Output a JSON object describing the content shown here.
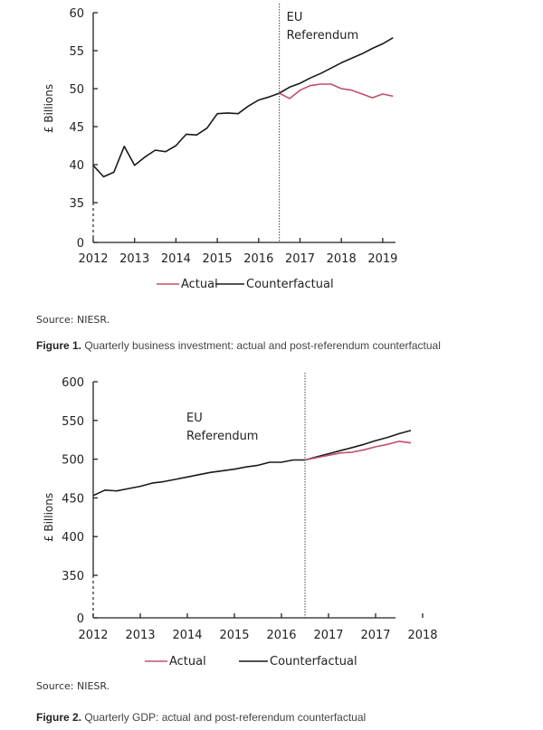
{
  "chart_data": [
    {
      "type": "line",
      "title": "",
      "xlabel": "",
      "ylabel": "£ Billions",
      "x_tick_labels": [
        "2012",
        "2013",
        "2014",
        "2015",
        "2016",
        "2017",
        "2018",
        "2019"
      ],
      "y_tick_labels": [
        "0",
        "35",
        "40",
        "45",
        "50",
        "55",
        "60"
      ],
      "y_tick_values": [
        0,
        35,
        40,
        45,
        50,
        55,
        60
      ],
      "ylim": [
        0,
        60
      ],
      "y_axis_break": [
        0,
        35
      ],
      "xlim": [
        2012,
        2019.25
      ],
      "grid": false,
      "legend_placement": "bottom-center",
      "annotation": {
        "line1": "EU",
        "line2": "Referendum",
        "x": 2016.5
      },
      "series": [
        {
          "name": "Actual",
          "color": "#c0506a",
          "x": [
            2016.5,
            2016.75,
            2017.0,
            2017.25,
            2017.5,
            2017.75,
            2018.0,
            2018.25,
            2018.5,
            2018.75,
            2019.0,
            2019.25
          ],
          "values": [
            49.4,
            48.7,
            49.8,
            50.4,
            50.6,
            50.6,
            50.0,
            49.8,
            49.3,
            48.8,
            49.3,
            49.0
          ]
        },
        {
          "name": "Counterfactual",
          "color": "#1a1a1a",
          "x": [
            2012.0,
            2012.25,
            2012.5,
            2012.75,
            2013.0,
            2013.25,
            2013.5,
            2013.75,
            2014.0,
            2014.25,
            2014.5,
            2014.75,
            2015.0,
            2015.25,
            2015.5,
            2015.75,
            2016.0,
            2016.25,
            2016.5,
            2016.75,
            2017.0,
            2017.25,
            2017.5,
            2017.75,
            2018.0,
            2018.25,
            2018.5,
            2018.75,
            2019.0,
            2019.25
          ],
          "values": [
            39.9,
            38.4,
            39.0,
            42.4,
            39.9,
            41.0,
            41.9,
            41.7,
            42.5,
            44.0,
            43.9,
            44.8,
            46.7,
            46.8,
            46.7,
            47.7,
            48.5,
            48.9,
            49.4,
            50.2,
            50.7,
            51.4,
            52.0,
            52.7,
            53.4,
            54.0,
            54.6,
            55.3,
            55.9,
            56.7
          ]
        }
      ],
      "legend": [
        "Actual",
        "Counterfactual"
      ]
    },
    {
      "type": "line",
      "title": "",
      "xlabel": "",
      "ylabel": "£ Billions",
      "x_tick_labels": [
        "2012",
        "2013",
        "2014",
        "2015",
        "2016",
        "2017",
        "2017",
        "2018"
      ],
      "y_tick_labels": [
        "0",
        "350",
        "400",
        "450",
        "500",
        "550",
        "600"
      ],
      "y_tick_values": [
        0,
        350,
        400,
        450,
        500,
        550,
        600
      ],
      "ylim": [
        0,
        600
      ],
      "y_axis_break": [
        0,
        350
      ],
      "xlim": [
        2012,
        2018.75
      ],
      "grid": false,
      "legend_placement": "bottom-center",
      "annotation": {
        "line1": "EU",
        "line2": "Referendum",
        "x": 2016.5
      },
      "series": [
        {
          "name": "Actual",
          "color": "#c0506a",
          "x": [
            2016.5,
            2016.75,
            2017.0,
            2017.25,
            2017.5,
            2017.75,
            2018.0,
            2018.25,
            2018.5,
            2018.75
          ],
          "values": [
            499,
            502,
            505,
            508,
            509,
            512,
            516,
            519,
            523,
            521
          ]
        },
        {
          "name": "Counterfactual",
          "color": "#1a1a1a",
          "x": [
            2012.0,
            2012.25,
            2012.5,
            2012.75,
            2013.0,
            2013.25,
            2013.5,
            2013.75,
            2014.0,
            2014.25,
            2014.5,
            2014.75,
            2015.0,
            2015.25,
            2015.5,
            2015.75,
            2016.0,
            2016.25,
            2016.5,
            2016.75,
            2017.0,
            2017.25,
            2017.5,
            2017.75,
            2018.0,
            2018.25,
            2018.5,
            2018.75
          ],
          "values": [
            453,
            460,
            459,
            462,
            465,
            469,
            471,
            474,
            477,
            480,
            483,
            485,
            487,
            490,
            492,
            496,
            496,
            499,
            499,
            503,
            507,
            511,
            515,
            519,
            524,
            528,
            533,
            537
          ]
        }
      ],
      "legend": [
        "Actual",
        "Counterfactual"
      ]
    }
  ],
  "figures": [
    {
      "source": "Source: NIESR.",
      "caption_label": "Figure 1.",
      "caption_text": " Quarterly business investment: actual and post-referendum counterfactual"
    },
    {
      "source": "Source: NIESR.",
      "caption_label": "Figure 2.",
      "caption_text": " Quarterly GDP: actual and post-referendum counterfactual"
    }
  ]
}
